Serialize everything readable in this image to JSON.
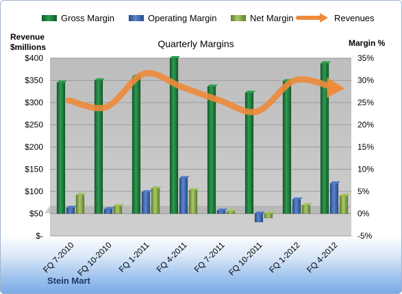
{
  "chart_data": {
    "type": "bar",
    "title": "Quarterly Margins",
    "categories": [
      "FQ 7-2010",
      "FQ 10-2010",
      "FQ 1-2011",
      "FQ 4-2011",
      "FQ 7-2011",
      "FQ 10-2011",
      "FQ 1-2012",
      "FQ 4-2012"
    ],
    "series": [
      {
        "name": "Gross Margin",
        "axis": "right",
        "values": [
          29.5,
          30.0,
          30.8,
          35.0,
          28.6,
          27.2,
          29.8,
          33.8
        ],
        "color": "#1e7a3a"
      },
      {
        "name": "Operating Margin",
        "axis": "right",
        "values": [
          1.3,
          1.0,
          4.8,
          8.0,
          0.7,
          -1.9,
          3.2,
          6.8
        ],
        "color": "#3a66ad"
      },
      {
        "name": "Net Margin",
        "axis": "right",
        "values": [
          4.2,
          1.7,
          5.7,
          5.3,
          0.5,
          -1.0,
          1.9,
          4.0
        ],
        "color": "#8db04a"
      }
    ],
    "line_series": {
      "name": "Revenues",
      "axis": "left",
      "values": [
        305,
        290,
        365,
        335,
        305,
        280,
        350,
        335
      ],
      "color": "#ee8a3a"
    },
    "left_axis": {
      "label_line1": "Revenue",
      "label_line2": "$millions",
      "ylim": [
        0,
        400
      ],
      "ticks": [
        "$-",
        "$50",
        "$100",
        "$150",
        "$200",
        "$250",
        "$300",
        "$350",
        "$400"
      ]
    },
    "right_axis": {
      "label": "Margin %",
      "ylim": [
        -5,
        35
      ],
      "ticks": [
        "-5%",
        "0%",
        "5%",
        "10%",
        "15%",
        "20%",
        "25%",
        "30%",
        "35%"
      ]
    },
    "legend": [
      "Gross Margin",
      "Operating Margin",
      "Net Margin",
      "Revenues"
    ],
    "legend_position": "top",
    "grid": true
  },
  "footer": {
    "company": "Stein Mart"
  },
  "colors": {
    "plot_bg": "#c0c0c0",
    "grid": "#a6a6a6",
    "floor": "#a6a6a6"
  }
}
